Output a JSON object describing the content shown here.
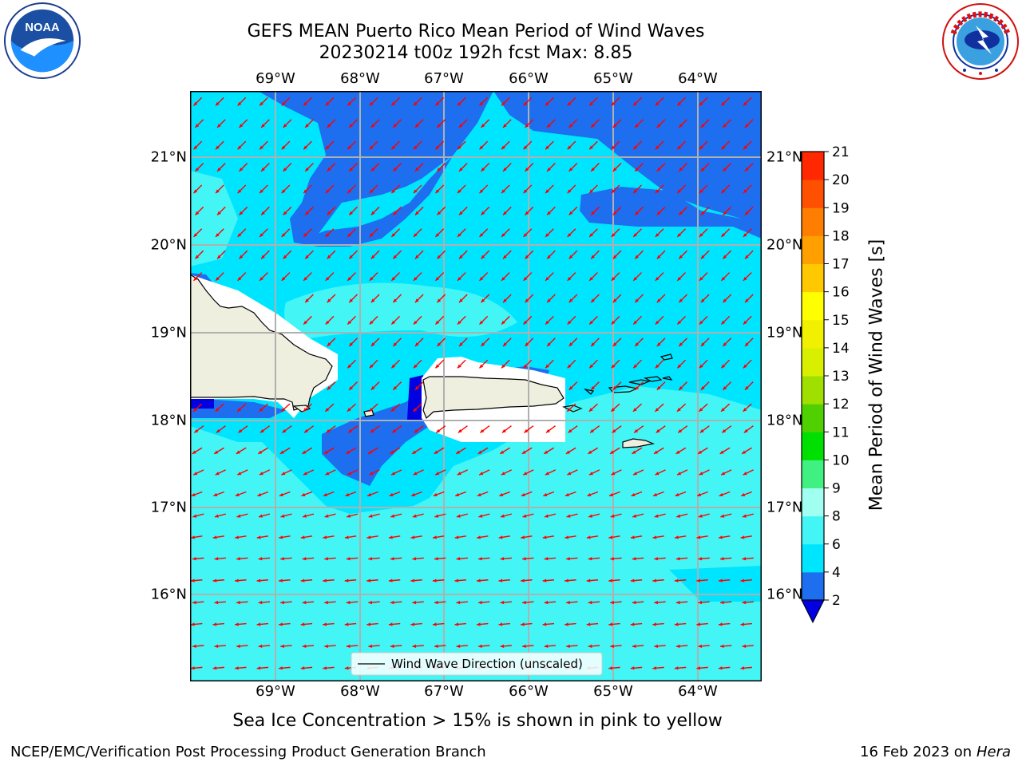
{
  "header": {
    "title_line1": "GEFS MEAN Puerto Rico Mean Period of Wind Waves",
    "title_line2": "20230214 t00z 192h fcst   Max: 8.85"
  },
  "logos": {
    "left": "noaa-logo",
    "left_text": "NOAA",
    "right": "nws-logo"
  },
  "map": {
    "region": "Puerto Rico",
    "lon_labels": [
      "69°W",
      "68°W",
      "67°W",
      "66°W",
      "65°W",
      "64°W"
    ],
    "lat_labels": [
      "21°N",
      "20°N",
      "19°N",
      "18°N",
      "17°N",
      "16°N"
    ],
    "legend_label": "Wind Wave Direction (unscaled)",
    "arrow_color": "#ff0000",
    "land_color": "#efefdf"
  },
  "colorbar": {
    "label": "Mean Period of Wind Waves [s]",
    "ticks": [
      "2",
      "4",
      "6",
      "8",
      "9",
      "10",
      "11",
      "12",
      "13",
      "14",
      "15",
      "16",
      "17",
      "18",
      "19",
      "20",
      "21"
    ],
    "colors": [
      "#1e6ef0",
      "#00e5ff",
      "#44f5f5",
      "#a0fff0",
      "#40f080",
      "#00e000",
      "#50d000",
      "#a0e000",
      "#d8f000",
      "#f0f000",
      "#ffff00",
      "#ffc800",
      "#ffa000",
      "#ff7d00",
      "#ff5000",
      "#ff2800",
      "#ff0000"
    ],
    "under_color": "#0000e0"
  },
  "chart_data": {
    "type": "heatmap",
    "title": "GEFS MEAN Puerto Rico Mean Period of Wind Waves",
    "subtitle": "20230214 t00z 192h fcst   Max: 8.85",
    "xlim": [
      -70.0,
      -63.25
    ],
    "ylim": [
      15.0,
      21.75
    ],
    "max_value": 8.85,
    "levels": [
      2,
      4,
      6,
      8,
      9,
      10,
      11,
      12,
      13,
      14,
      15,
      16,
      17,
      18,
      19,
      20,
      21
    ],
    "colorbar_label": "Mean Period of Wind Waves [s]",
    "legend": "Wind Wave Direction (unscaled)",
    "grid": true
  },
  "footer": {
    "subtitle": "Sea Ice Concentration > 15% is shown in pink to yellow",
    "left": "NCEP/EMC/Verification Post Processing Product Generation Branch",
    "date": "16 Feb 2023 on",
    "host": "Hera"
  }
}
